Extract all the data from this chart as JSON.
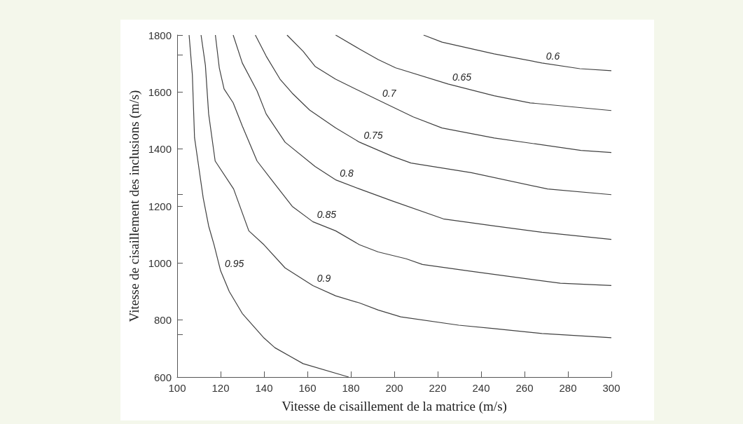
{
  "chart_data": {
    "type": "line",
    "xlabel": "Vitesse de cisaillement de la matrice (m/s)",
    "ylabel": "Vitesse de cisaillement des inclusions (m/s)",
    "xlim": [
      100,
      300
    ],
    "ylim": [
      600,
      1800
    ],
    "xticks": [
      100,
      120,
      140,
      160,
      180,
      200,
      220,
      240,
      260,
      280,
      300
    ],
    "yticks": [
      600,
      {
        "value": 750,
        "label": null
      },
      800,
      1000,
      1200,
      {
        "value": 1240,
        "label": null
      },
      1400,
      1600,
      {
        "value": 1730,
        "label": null
      },
      1800
    ],
    "marker": "none",
    "line_style": "solid",
    "series": [
      {
        "name": "0.95",
        "color": "#404040",
        "x": [
          105.5,
          107,
          108,
          112,
          114.5,
          117,
          120,
          124,
          130,
          140,
          145,
          158,
          179
        ],
        "values": [
          1800,
          1660,
          1440,
          1228,
          1130,
          1064,
          973,
          900,
          823,
          737,
          703,
          647,
          600
        ]
      },
      {
        "name": "0.9",
        "color": "#404040",
        "x": [
          111,
          113,
          114.5,
          117.5,
          126,
          133,
          140,
          149.7,
          162.5,
          173,
          184,
          192.6,
          203,
          229.7,
          246,
          268,
          300
        ],
        "values": [
          1800,
          1694,
          1523,
          1358,
          1260,
          1113,
          1064,
          983,
          921,
          885,
          860,
          835,
          811,
          782,
          770,
          753,
          738
        ]
      },
      {
        "name": "0.85",
        "color": "#404040",
        "x": [
          117.6,
          119.4,
          121.6,
          125.8,
          130,
          136.8,
          145,
          153,
          162.5,
          173,
          184,
          192.6,
          205.5,
          213,
          235.5,
          276.5,
          300
        ],
        "values": [
          1800,
          1685,
          1611,
          1562,
          1481,
          1358,
          1277,
          1199,
          1145,
          1113,
          1064,
          1039,
          1015,
          995,
          971,
          929,
          921
        ]
      },
      {
        "name": "0.8",
        "color": "#404040",
        "x": [
          125.8,
          130,
          136.8,
          141,
          149.7,
          163.5,
          173,
          184,
          199,
          222.6,
          246,
          268,
          300
        ],
        "values": [
          1800,
          1702,
          1604,
          1523,
          1424,
          1339,
          1292,
          1260,
          1218,
          1155,
          1130,
          1108,
          1083
        ]
      },
      {
        "name": "0.75",
        "color": "#404040",
        "x": [
          136,
          141,
          147.4,
          153,
          161,
          173,
          184,
          199,
          207.7,
          235.5,
          270.6,
          300
        ],
        "values": [
          1800,
          1726,
          1645,
          1596,
          1537,
          1474,
          1424,
          1375,
          1351,
          1317,
          1260,
          1240
        ]
      },
      {
        "name": "0.7",
        "color": "#404040",
        "x": [
          150.6,
          158,
          163.5,
          173,
          184,
          192.6,
          208.7,
          222,
          246,
          286,
          300
        ],
        "values": [
          1800,
          1743,
          1690,
          1645,
          1604,
          1572,
          1513,
          1474,
          1439,
          1395,
          1388
        ]
      },
      {
        "name": "0.65",
        "color": "#404040",
        "x": [
          173,
          184,
          192.6,
          200.6,
          224.8,
          246,
          262.6,
          300
        ],
        "values": [
          1800,
          1751,
          1714,
          1685,
          1628,
          1587,
          1562,
          1535
        ]
      },
      {
        "name": "0.6",
        "color": "#404040",
        "x": [
          213.5,
          222,
          246,
          268,
          285.5,
          300
        ],
        "values": [
          1800,
          1775,
          1734,
          1702,
          1682,
          1675
        ]
      }
    ]
  }
}
